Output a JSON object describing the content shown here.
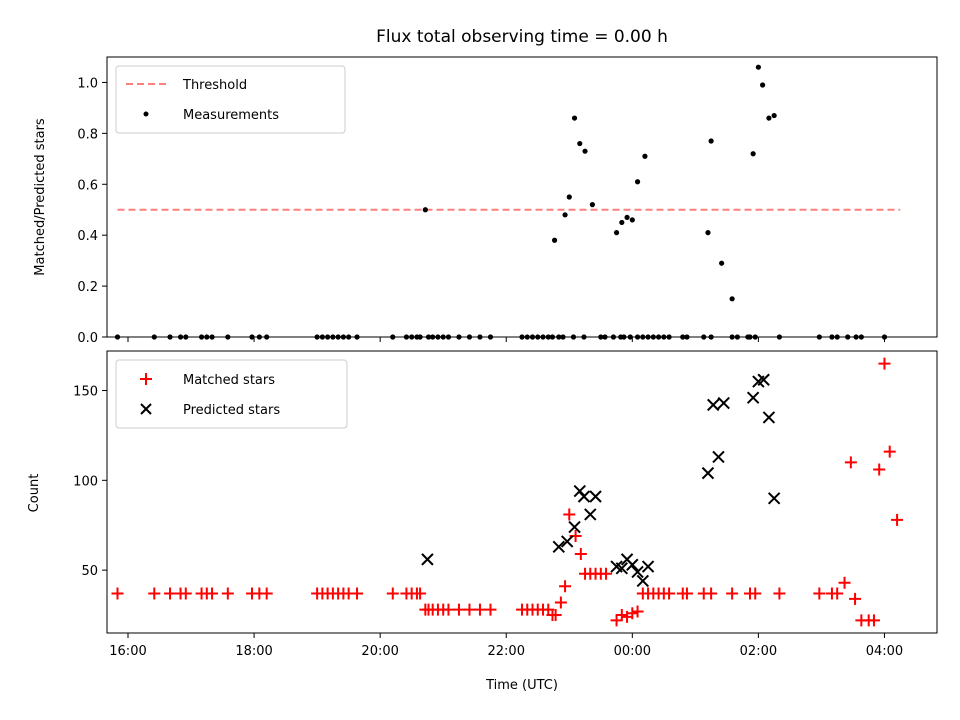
{
  "title": "Flux total observing time = 0.00 h",
  "colors": {
    "threshold": "#ff7f7f",
    "measurement": "#000000",
    "matched": "#ff0000",
    "predicted": "#000000"
  },
  "chart_data": [
    {
      "type": "scatter",
      "ylabel": "Matched/Predicted stars",
      "xlabel": "",
      "xlim": [
        "15:40",
        "28:50"
      ],
      "ylim": [
        0,
        1.1
      ],
      "xticks": [
        "16:00",
        "18:00",
        "20:00",
        "22:00",
        "00:00",
        "02:00",
        "04:00"
      ],
      "yticks": [
        "0.0",
        "0.2",
        "0.4",
        "0.6",
        "0.8",
        "1.0"
      ],
      "legend_position": "top-left",
      "series": [
        {
          "name": "Threshold",
          "kind": "line-dashed",
          "x": [
            "15:50",
            "28:15"
          ],
          "y": [
            0.5,
            0.5
          ]
        },
        {
          "name": "Measurements",
          "kind": "dot",
          "x": [
            "15:50",
            "16:25",
            "16:40",
            "16:50",
            "16:55",
            "17:10",
            "17:15",
            "17:20",
            "17:35",
            "17:58",
            "18:05",
            "18:12",
            "19:00",
            "19:05",
            "19:10",
            "19:15",
            "19:20",
            "19:25",
            "19:30",
            "19:38",
            "20:12",
            "20:25",
            "20:30",
            "20:35",
            "20:38",
            "20:43",
            "20:46",
            "20:50",
            "20:55",
            "21:00",
            "21:05",
            "21:15",
            "21:25",
            "21:35",
            "21:45",
            "22:15",
            "22:20",
            "22:25",
            "22:30",
            "22:35",
            "22:40",
            "22:44",
            "22:50",
            "22:54",
            "23:04",
            "23:14",
            "23:30",
            "23:34",
            "23:42",
            "23:49",
            "23:52",
            "23:58",
            "24:05",
            "24:10",
            "24:15",
            "24:20",
            "24:25",
            "24:30",
            "24:35",
            "24:48",
            "24:52",
            "25:08",
            "25:15",
            "25:35",
            "25:52",
            "25:57",
            "26:20",
            "26:58",
            "27:10",
            "27:15",
            "27:25",
            "27:33",
            "27:38",
            "28:00"
          ],
          "y": [
            0,
            0,
            0,
            0,
            0,
            0,
            0,
            0,
            0,
            0,
            0,
            0,
            0,
            0,
            0,
            0,
            0,
            0,
            0,
            0,
            0,
            0,
            0,
            0,
            0,
            0.5,
            0,
            0,
            0,
            0,
            0,
            0,
            0,
            0,
            0,
            0,
            0,
            0,
            0,
            0,
            0,
            0,
            0,
            0,
            0,
            0,
            0,
            0,
            0,
            0,
            0,
            0,
            0,
            0,
            0,
            0,
            0,
            0,
            0,
            0,
            0,
            0,
            0,
            0,
            0,
            0,
            0,
            0,
            0,
            0,
            0,
            0,
            0,
            0
          ]
        },
        {
          "name": "",
          "kind": "dot",
          "x": [
            "22:46",
            "22:56",
            "23:00",
            "23:05",
            "23:10",
            "23:15",
            "23:22",
            "23:45",
            "23:50",
            "23:55",
            "24:00",
            "24:05",
            "24:12",
            "25:12",
            "25:15",
            "25:25",
            "25:35",
            "25:40",
            "25:50",
            "25:55",
            "26:00",
            "26:04",
            "26:10",
            "26:15"
          ],
          "y": [
            0.38,
            0.48,
            0.55,
            0.86,
            0.76,
            0.73,
            0.52,
            0.41,
            0.45,
            0.47,
            0.46,
            0.61,
            0.71,
            0.41,
            0.77,
            0.29,
            0.15,
            0.0,
            0.0,
            0.72,
            1.06,
            0.99,
            0.86,
            0.87
          ]
        }
      ]
    },
    {
      "type": "scatter",
      "ylabel": "Count",
      "xlabel": "Time (UTC)",
      "xlim": [
        "15:40",
        "28:50"
      ],
      "ylim": [
        15,
        172
      ],
      "xticks": [
        "16:00",
        "18:00",
        "20:00",
        "22:00",
        "00:00",
        "02:00",
        "04:00"
      ],
      "yticks": [
        "50",
        "100",
        "150"
      ],
      "legend_position": "top-left",
      "series": [
        {
          "name": "Matched stars",
          "kind": "plus",
          "x": [
            "15:50",
            "16:25",
            "16:40",
            "16:50",
            "16:55",
            "17:10",
            "17:15",
            "17:20",
            "17:35",
            "17:58",
            "18:05",
            "18:12",
            "19:00",
            "19:05",
            "19:10",
            "19:15",
            "19:20",
            "19:25",
            "19:30",
            "19:38",
            "20:12",
            "20:25",
            "20:30",
            "20:35",
            "20:38",
            "20:43",
            "20:46",
            "20:50",
            "20:55",
            "21:00",
            "21:05",
            "21:15",
            "21:25",
            "21:35",
            "21:45",
            "22:15",
            "22:20",
            "22:25",
            "22:30",
            "22:35",
            "22:40",
            "22:44",
            "22:47",
            "22:52",
            "22:56",
            "23:00",
            "23:06",
            "23:11",
            "23:15",
            "23:20",
            "23:25",
            "23:30",
            "23:35",
            "23:45",
            "23:50",
            "23:55",
            "24:00",
            "24:05",
            "24:10",
            "24:15",
            "24:20",
            "24:25",
            "24:30",
            "24:35",
            "24:48",
            "24:52",
            "25:08",
            "25:15",
            "25:35",
            "25:52",
            "25:57",
            "26:20",
            "26:58",
            "27:10",
            "27:15",
            "27:22",
            "27:28",
            "27:32",
            "27:38",
            "27:45",
            "27:50",
            "27:55",
            "28:00",
            "28:05",
            "28:12"
          ],
          "y": [
            37,
            37,
            37,
            37,
            37,
            37,
            37,
            37,
            37,
            37,
            37,
            37,
            37,
            37,
            37,
            37,
            37,
            37,
            37,
            37,
            37,
            37,
            37,
            37,
            37,
            28,
            28,
            28,
            28,
            28,
            28,
            28,
            28,
            28,
            28,
            28,
            28,
            28,
            28,
            28,
            28,
            25,
            25,
            32,
            41,
            81,
            69,
            59,
            48,
            48,
            48,
            48,
            48,
            22,
            25,
            24,
            26,
            27,
            37,
            37,
            37,
            37,
            37,
            37,
            37,
            37,
            37,
            37,
            37,
            37,
            37,
            37,
            37,
            37,
            37,
            43,
            110,
            34,
            22,
            22,
            22,
            106,
            165,
            116,
            78
          ]
        },
        {
          "name": "Predicted stars",
          "kind": "x",
          "x": [
            "20:45",
            "22:50",
            "22:58",
            "23:05",
            "23:10",
            "23:14",
            "23:20",
            "23:25",
            "23:45",
            "23:50",
            "23:55",
            "24:00",
            "24:05",
            "24:10",
            "24:15",
            "25:12",
            "25:17",
            "25:22",
            "25:27",
            "25:55",
            "26:00",
            "26:05",
            "26:10",
            "26:15"
          ],
          "y": [
            56,
            63,
            66,
            74,
            94,
            91,
            81,
            91,
            52,
            51,
            56,
            53,
            49,
            44,
            52,
            104,
            142,
            113,
            143,
            146,
            155,
            156,
            135,
            90
          ]
        }
      ]
    }
  ]
}
